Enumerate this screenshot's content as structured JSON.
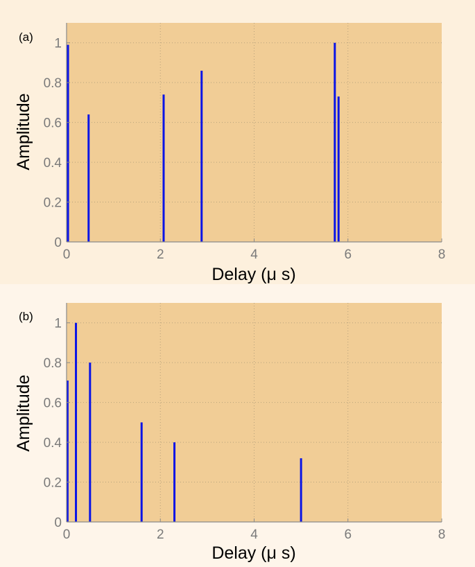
{
  "colors": {
    "background": "#fdf0dd",
    "plot_background": "#f1cd96",
    "stem": "#0a14e6",
    "grid": "#b7a27c",
    "axis": "#8a8a8a"
  },
  "chart_data": [
    {
      "type": "bar",
      "panel_label": "(a)",
      "xlabel": "Delay (μ s)",
      "ylabel": "Amplitude",
      "xlim": [
        0,
        8
      ],
      "ylim": [
        0,
        1.1
      ],
      "xticks": [
        0,
        2,
        4,
        6,
        8
      ],
      "yticks": [
        0,
        0.2,
        0.4,
        0.6,
        0.8,
        1
      ],
      "xtick_labels": [
        "0",
        "2",
        "4",
        "6",
        "8"
      ],
      "ytick_labels": [
        "0",
        "0.2",
        "0.4",
        "0.6",
        "0.8",
        "1"
      ],
      "grid": true,
      "x": [
        0.03,
        0.47,
        2.07,
        2.88,
        5.72,
        5.8
      ],
      "values": [
        0.99,
        0.64,
        0.74,
        0.86,
        1.0,
        0.73
      ]
    },
    {
      "type": "bar",
      "panel_label": "(b)",
      "xlabel": "Delay (μ s)",
      "ylabel": "Amplitude",
      "xlim": [
        0,
        8
      ],
      "ylim": [
        0,
        1.1
      ],
      "xticks": [
        0,
        2,
        4,
        6,
        8
      ],
      "yticks": [
        0,
        0.2,
        0.4,
        0.6,
        0.8,
        1
      ],
      "xtick_labels": [
        "0",
        "2",
        "4",
        "6",
        "8"
      ],
      "ytick_labels": [
        "0",
        "0.2",
        "0.4",
        "0.6",
        "0.8",
        "1"
      ],
      "grid": true,
      "x": [
        0.02,
        0.2,
        0.5,
        1.6,
        2.3,
        5.0
      ],
      "values": [
        0.71,
        1.0,
        0.8,
        0.5,
        0.4,
        0.32
      ]
    }
  ]
}
